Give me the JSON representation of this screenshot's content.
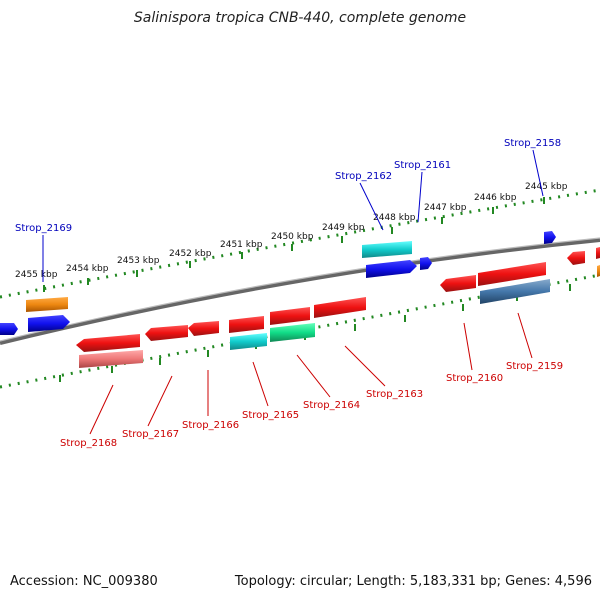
{
  "title": "Salinispora tropica CNB-440, complete genome",
  "footer": {
    "accession": "Accession: NC_009380",
    "summary": "Topology: circular; Length: 5,183,331 bp; Genes: 4,596"
  },
  "ruler_labels": [
    "2455 kbp",
    "2454 kbp",
    "2453 kbp",
    "2452 kbp",
    "2451 kbp",
    "2450 kbp",
    "2449 kbp",
    "2448 kbp",
    "2447 kbp",
    "2446 kbp",
    "2445 kbp"
  ],
  "gene_labels_top": [
    "Strop_2169",
    "Strop_2162",
    "Strop_2161",
    "Strop_2158"
  ],
  "gene_labels_bottom": [
    "Strop_2168",
    "Strop_2167",
    "Strop_2166",
    "Strop_2165",
    "Strop_2164",
    "Strop_2163",
    "Strop_2160",
    "Strop_2159"
  ],
  "colors": {
    "red": "#ee1111",
    "blue": "#1111ee",
    "cyan": "#11cccc",
    "orange": "#ee8811",
    "green": "#11dd88",
    "pink": "#ee7777",
    "steel": "#4477aa",
    "backbone": "#777777",
    "tick": "#228822"
  }
}
